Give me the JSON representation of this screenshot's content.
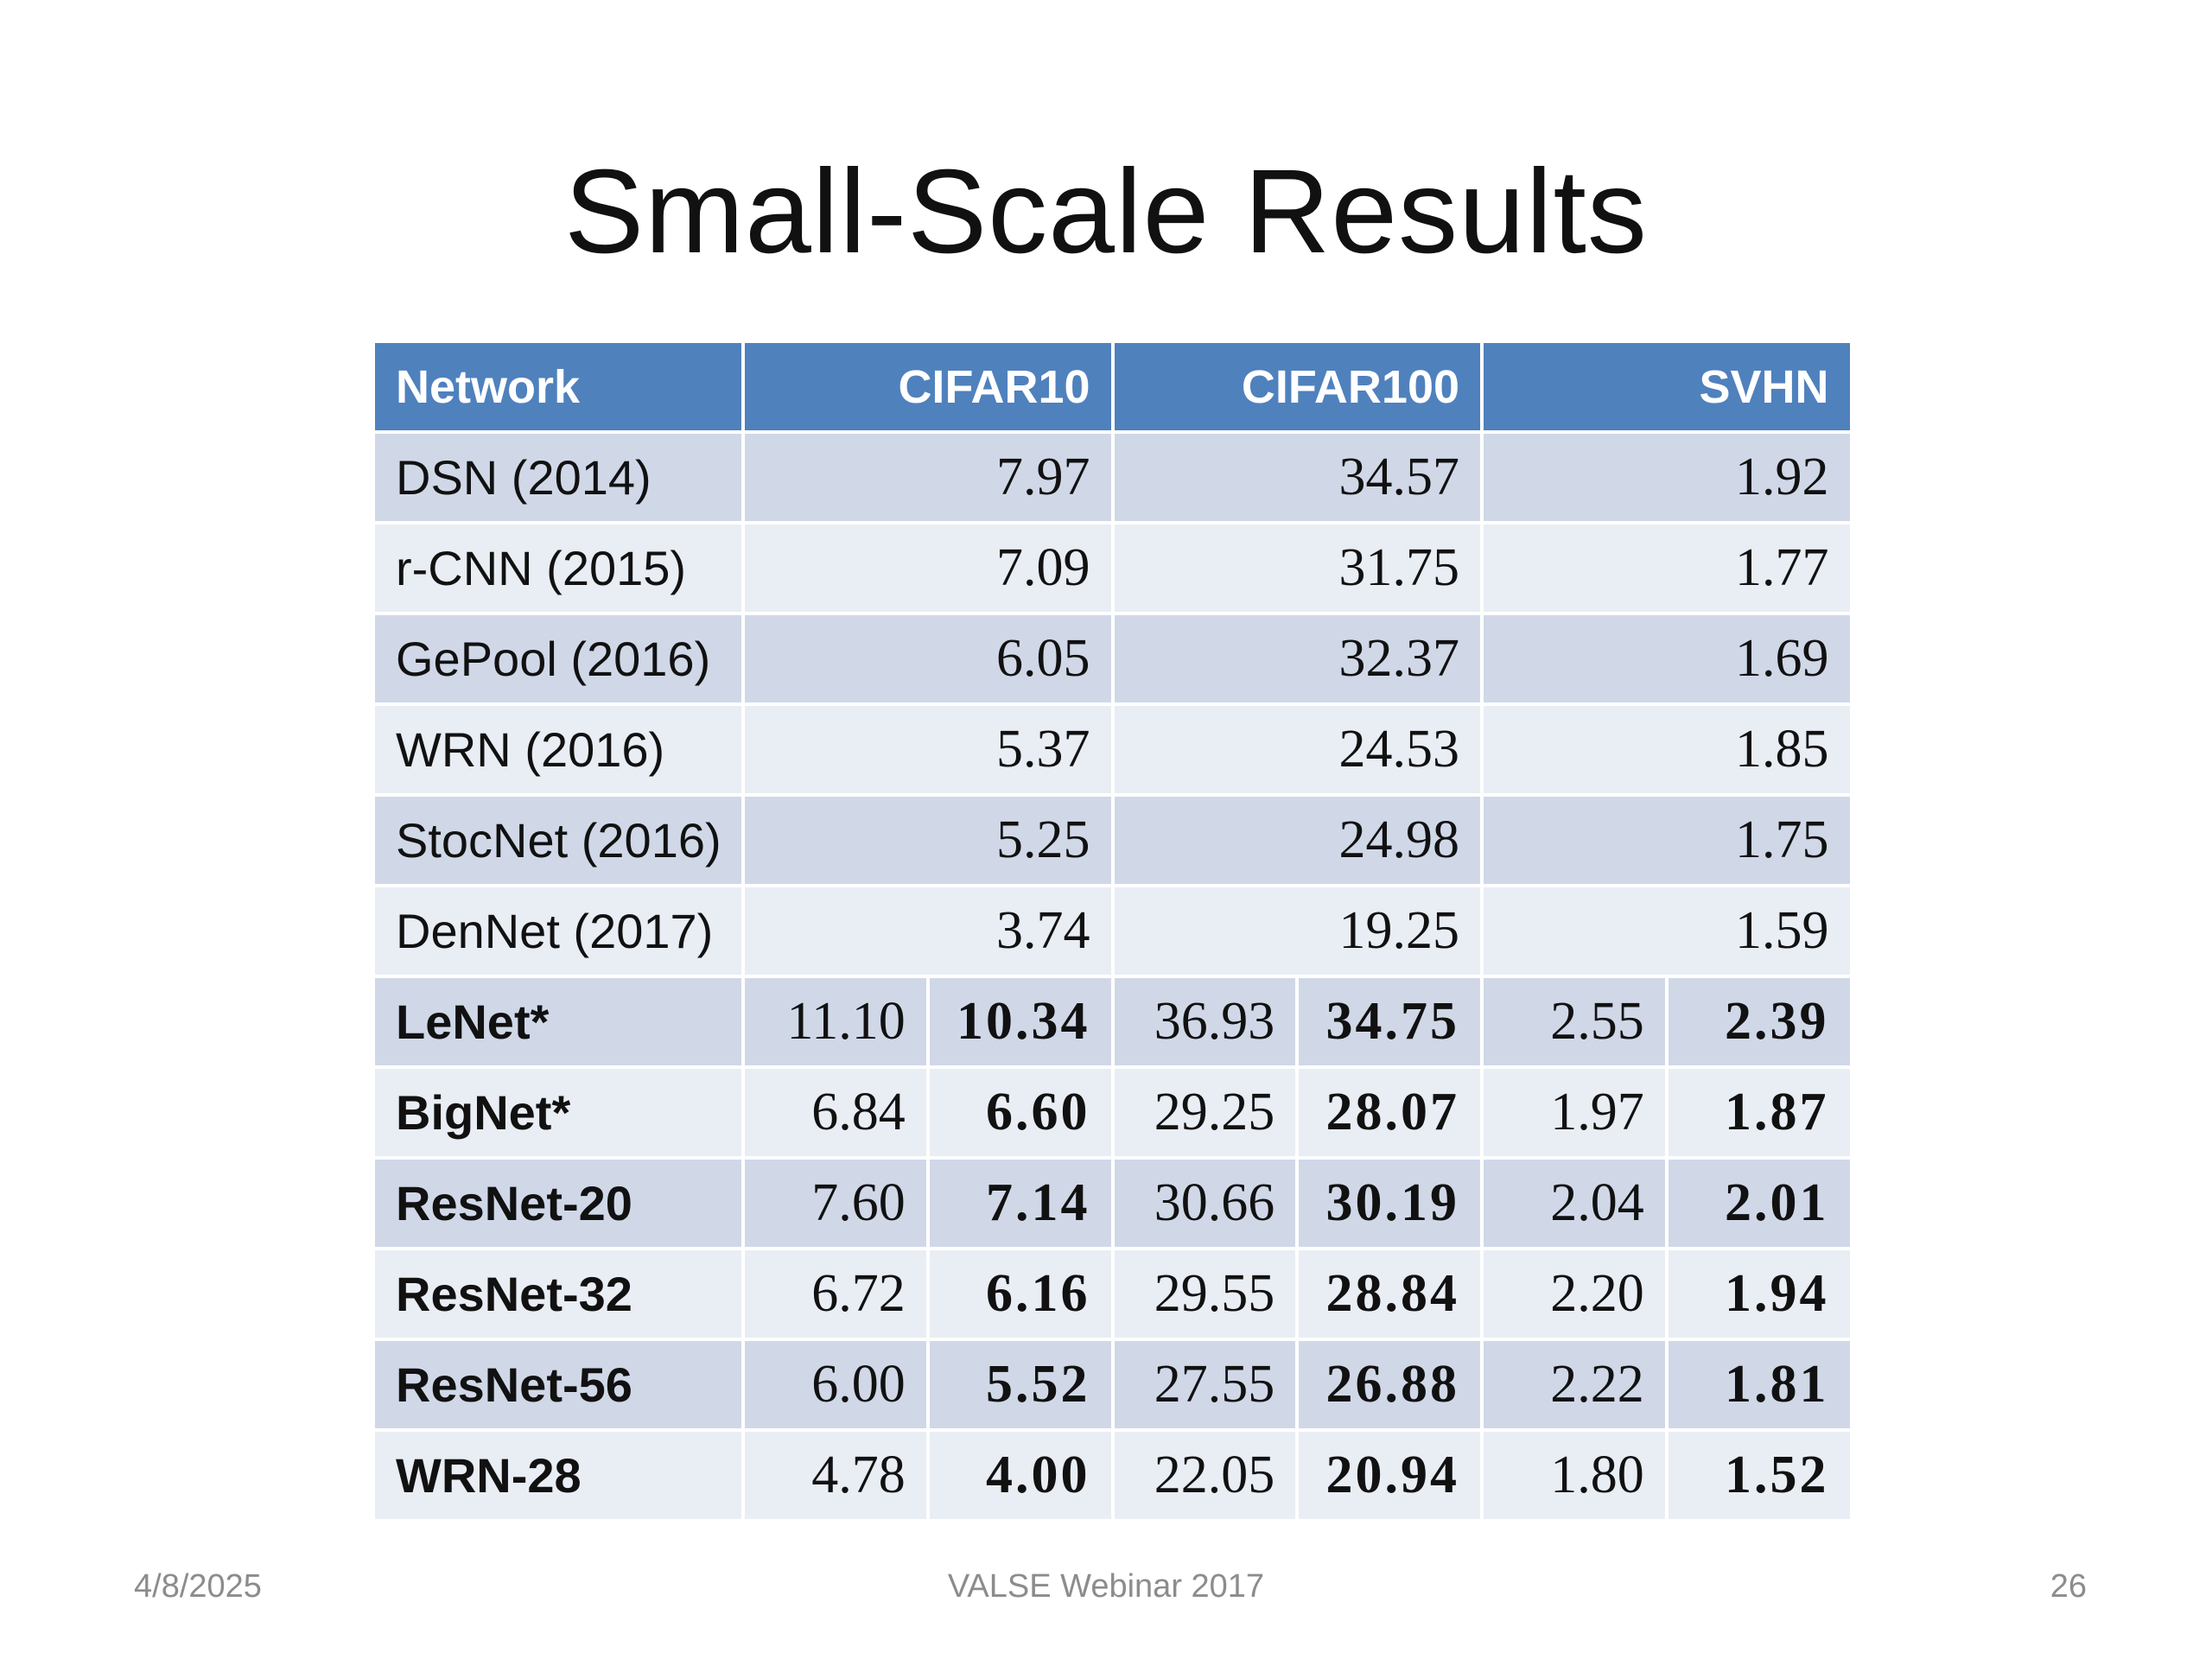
{
  "slide": {
    "title": "Small-Scale Results",
    "footer_date": "4/8/2025",
    "footer_center": "VALSE Webinar 2017",
    "page_number": "26"
  },
  "table": {
    "headers": [
      "Network",
      "CIFAR10",
      "CIFAR100",
      "SVHN"
    ],
    "baseline_rows": [
      {
        "network": "DSN (2014)",
        "cifar10": "7.97",
        "cifar100": "34.57",
        "svhn": "1.92"
      },
      {
        "network": "r-CNN (2015)",
        "cifar10": "7.09",
        "cifar100": "31.75",
        "svhn": "1.77"
      },
      {
        "network": "GePool (2016)",
        "cifar10": "6.05",
        "cifar100": "32.37",
        "svhn": "1.69"
      },
      {
        "network": "WRN (2016)",
        "cifar10": "5.37",
        "cifar100": "24.53",
        "svhn": "1.85"
      },
      {
        "network": "StocNet (2016)",
        "cifar10": "5.25",
        "cifar100": "24.98",
        "svhn": "1.75"
      },
      {
        "network": "DenNet (2017)",
        "cifar10": "3.74",
        "cifar100": "19.25",
        "svhn": "1.59"
      }
    ],
    "comparison_rows": [
      {
        "network": "LeNet*",
        "cifar10": [
          "11.10",
          "10.34"
        ],
        "cifar100": [
          "36.93",
          "34.75"
        ],
        "svhn": [
          "2.55",
          "2.39"
        ]
      },
      {
        "network": "BigNet*",
        "cifar10": [
          "6.84",
          "6.60"
        ],
        "cifar100": [
          "29.25",
          "28.07"
        ],
        "svhn": [
          "1.97",
          "1.87"
        ]
      },
      {
        "network": "ResNet-20",
        "cifar10": [
          "7.60",
          "7.14"
        ],
        "cifar100": [
          "30.66",
          "30.19"
        ],
        "svhn": [
          "2.04",
          "2.01"
        ]
      },
      {
        "network": "ResNet-32",
        "cifar10": [
          "6.72",
          "6.16"
        ],
        "cifar100": [
          "29.55",
          "28.84"
        ],
        "svhn": [
          "2.20",
          "1.94"
        ]
      },
      {
        "network": "ResNet-56",
        "cifar10": [
          "6.00",
          "5.52"
        ],
        "cifar100": [
          "27.55",
          "26.88"
        ],
        "svhn": [
          "2.22",
          "1.81"
        ]
      },
      {
        "network": "WRN-28",
        "cifar10": [
          "4.78",
          "4.00"
        ],
        "cifar100": [
          "22.05",
          "20.94"
        ],
        "svhn": [
          "1.80",
          "1.52"
        ]
      }
    ]
  },
  "colors": {
    "header_bg": "#4f81bd",
    "row_dark": "#d0d8e8",
    "row_light": "#e9edf4"
  }
}
